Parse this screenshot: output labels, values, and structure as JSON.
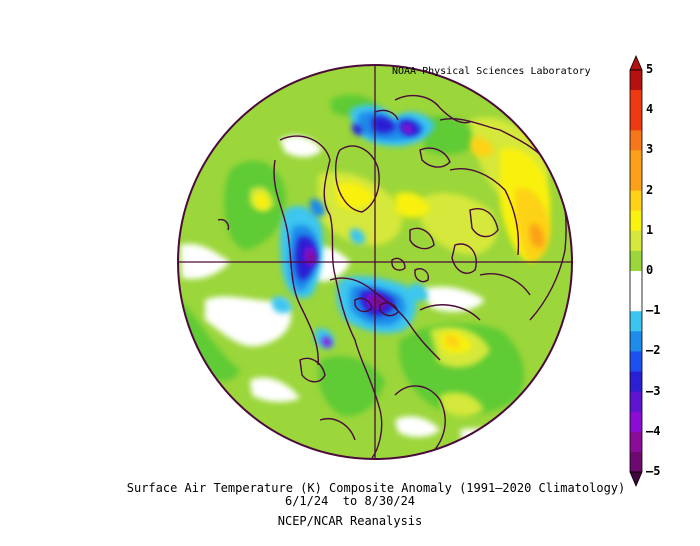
{
  "header": {
    "credit": "NOAA Physical Sciences Laboratory"
  },
  "caption": {
    "line1": "Surface Air Temperature (K) Composite Anomaly (1991–2020 Climatology)",
    "line2": "6/1/24  to 8/30/24",
    "line3": "NCEP/NCAR Reanalysis"
  },
  "colorbar": {
    "labels": [
      "5",
      "4",
      "3",
      "2",
      "1",
      "0",
      "–1",
      "–2",
      "–3",
      "–4",
      "–5"
    ],
    "colors": {
      "c_pos5": "#b5120f",
      "c_pos4": "#ee3a11",
      "c_pos35": "#f6761a",
      "c_pos3": "#fba119",
      "c_pos25": "#fdd217",
      "c_pos2": "#f9f10f",
      "c_pos15": "#d5e83b",
      "c_pos1": "#9bd63a",
      "c_pos05": "#5fcb36",
      "c_zero": "#ffffff",
      "c_neg05": "#3cc6ef",
      "c_neg1": "#1f8bea",
      "c_neg15": "#1e4ff0",
      "c_neg2": "#2c1ed3",
      "c_neg25": "#5e15d2",
      "c_neg3": "#8d0cd5",
      "c_neg35": "#8a0d99",
      "c_neg4": "#6e0a6f",
      "c_neg5": "#3e063d"
    }
  },
  "map": {
    "projection": "north-polar-stereographic",
    "outline_color": "#4b0a3a"
  }
}
